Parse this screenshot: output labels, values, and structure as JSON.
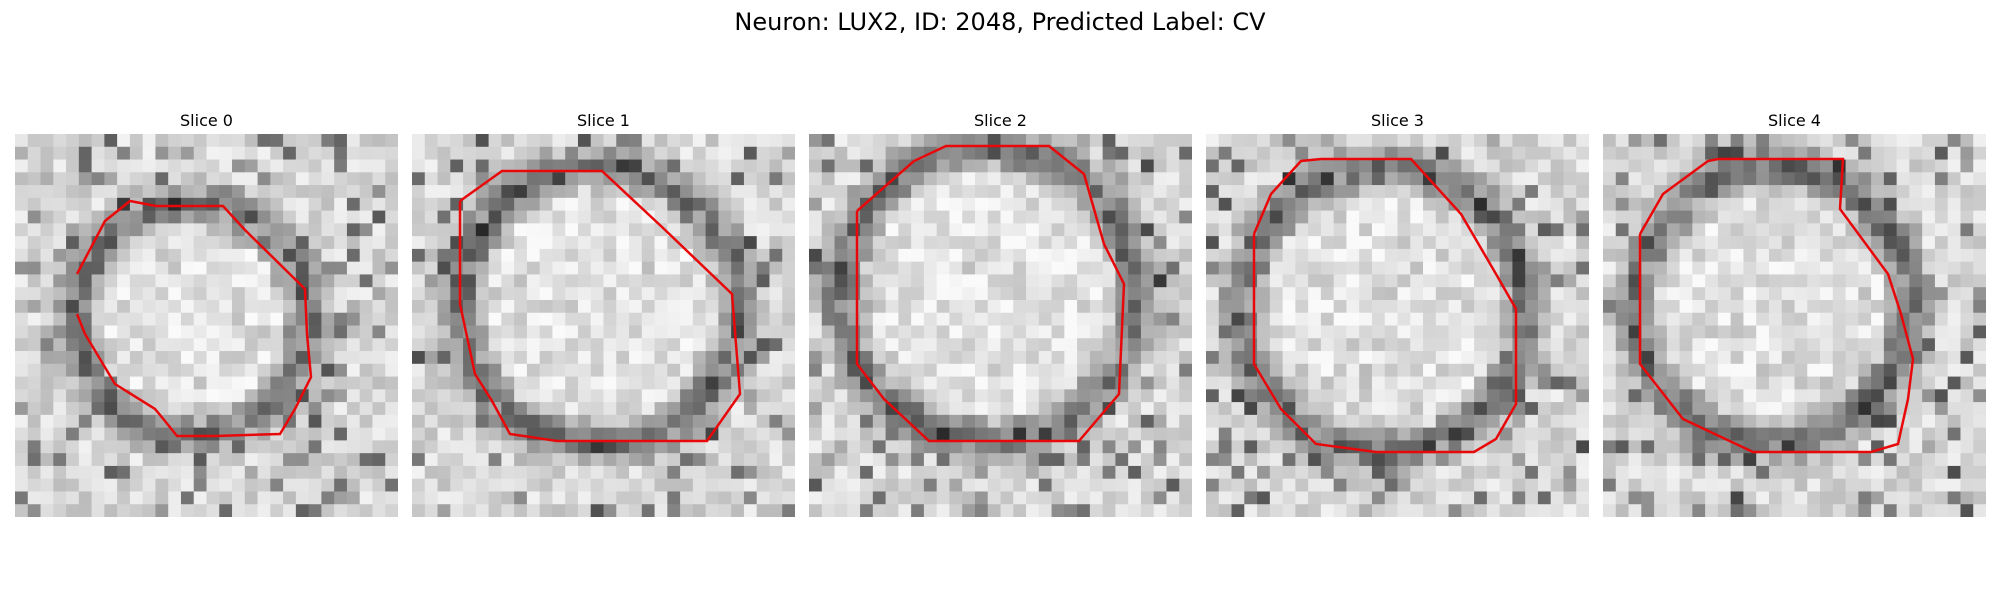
{
  "figure": {
    "title": "Neuron: LUX2, ID: 2048, Predicted Label: CV"
  },
  "colors": {
    "contour": "#e8080a",
    "background": "#ffffff"
  },
  "panels": [
    {
      "title": "Slice 0"
    },
    {
      "title": "Slice 1"
    },
    {
      "title": "Slice 2"
    },
    {
      "title": "Slice 3"
    },
    {
      "title": "Slice 4"
    }
  ]
}
